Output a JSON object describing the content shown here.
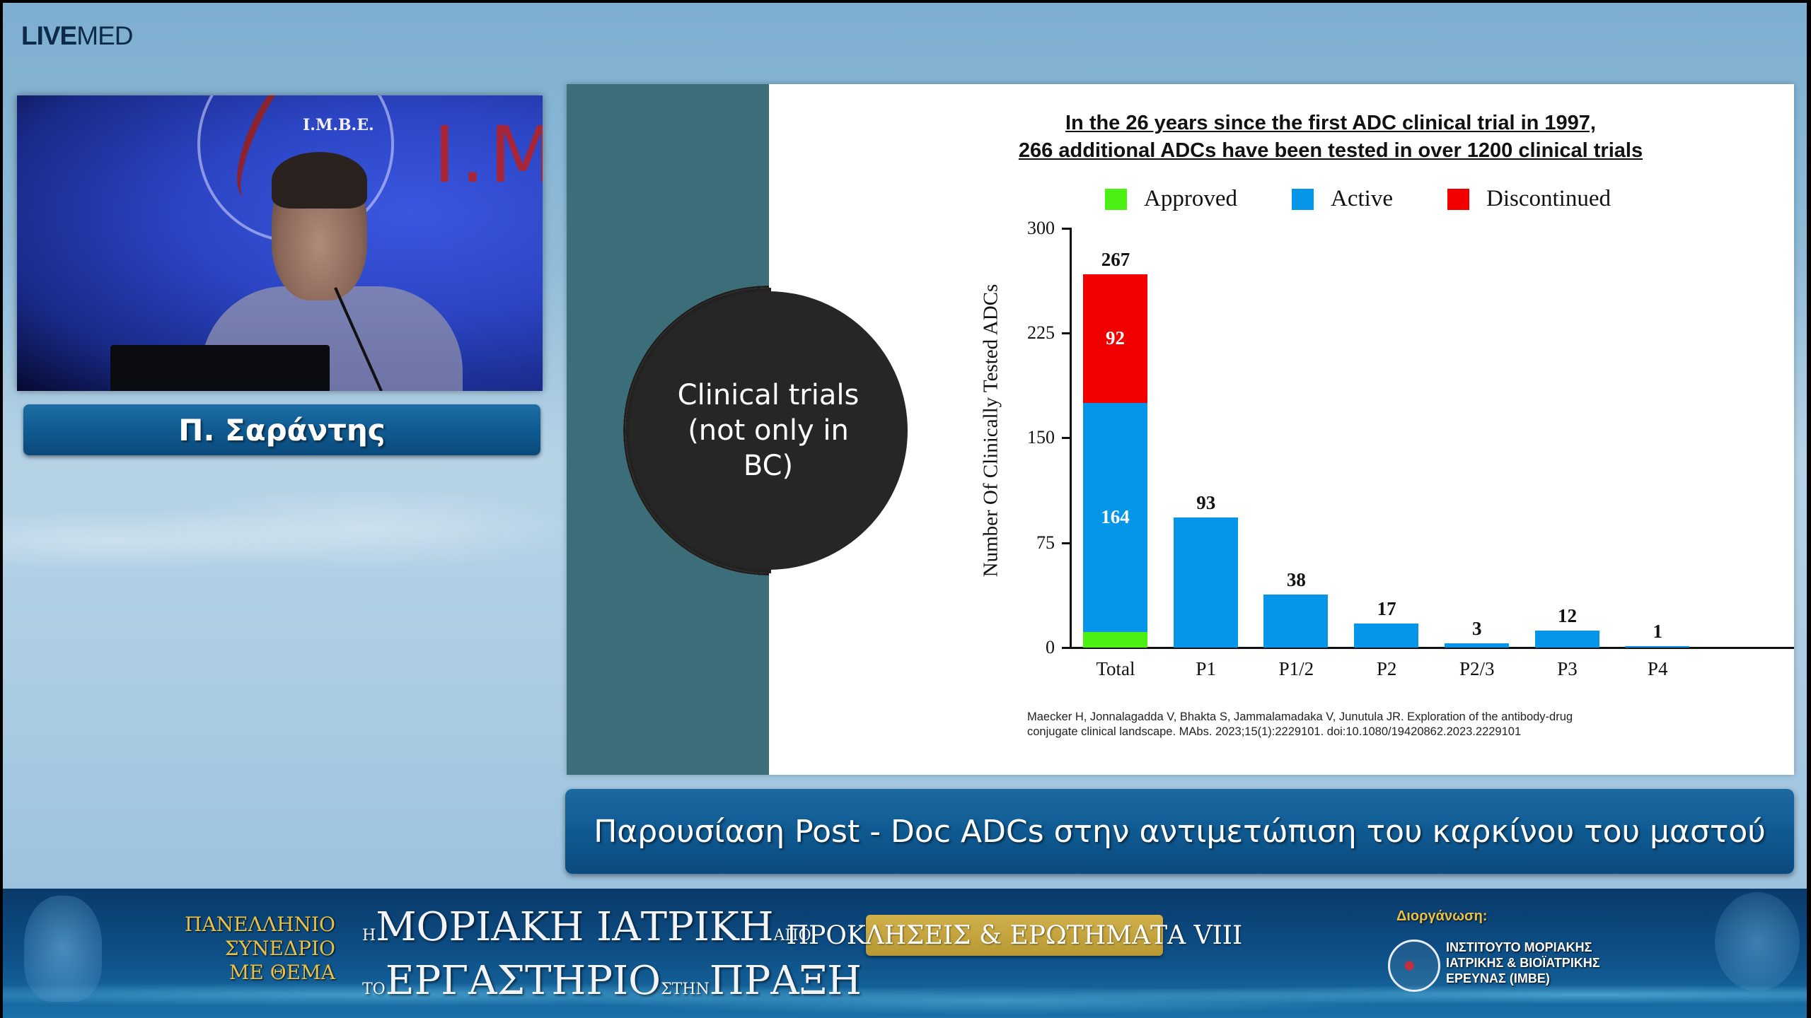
{
  "broadcast": {
    "logo_bold": "LIVE",
    "logo_light": "MED"
  },
  "speaker": {
    "name": "Π. Σαράντης",
    "backdrop_emblem_text": "I.M.B.E.",
    "backdrop_letters": "I.M"
  },
  "slide": {
    "side_circle_text": "Clinical trials (not only in BC)",
    "title_line1": "In the 26 years since the first ADC clinical trial in 1997,",
    "title_line2": "266 additional ADCs have been tested in over 1200 clinical trials",
    "citation_line1": "Maecker H, Jonnalagadda V, Bhakta S, Jammalamadaka V, Junutula JR. Exploration of the antibody-drug",
    "citation_line2": "conjugate clinical landscape. MAbs. 2023;15(1):2229101. doi:10.1080/19420862.2023.2229101"
  },
  "colors": {
    "approved": "#4cf014",
    "active": "#0596ea",
    "discontinued": "#f20000",
    "teal_panel": "#3b6e79",
    "title_bar": "#0f5a92",
    "gold": "#d0b04a"
  },
  "chart_data": {
    "type": "bar",
    "stacked": true,
    "title": "In the 26 years since the first ADC clinical trial in 1997, 266 additional ADCs have been tested in over 1200 clinical trials",
    "xlabel": "",
    "ylabel": "Number Of Clinically Tested ADCs",
    "ylim": [
      0,
      300
    ],
    "yticks": [
      0,
      75,
      150,
      225,
      300
    ],
    "categories": [
      "Total",
      "P1",
      "P1/2",
      "P2",
      "P2/3",
      "P3",
      "P4"
    ],
    "series": [
      {
        "name": "Approved",
        "color": "#4cf014",
        "values": [
          11,
          0,
          0,
          0,
          0,
          0,
          0
        ]
      },
      {
        "name": "Active",
        "color": "#0596ea",
        "values": [
          164,
          93,
          38,
          17,
          3,
          12,
          1
        ]
      },
      {
        "name": "Discontinued",
        "color": "#f20000",
        "values": [
          92,
          0,
          0,
          0,
          0,
          0,
          0
        ]
      }
    ],
    "totals": [
      267,
      93,
      38,
      17,
      3,
      12,
      1
    ],
    "legend": [
      "Approved",
      "Active",
      "Discontinued"
    ],
    "legend_position": "top",
    "grid": false,
    "segment_labels": {
      "Total": {
        "Approved": "11",
        "Active": "164",
        "Discontinued": "92"
      }
    }
  },
  "presentation_title": "Παρουσίαση Post - Doc ADCs στην αντιμετώπιση του καρκίνου του μαστού",
  "banner": {
    "congress_lines": [
      "ΠΑΝΕΛΛΗΝΙΟ",
      "ΣΥΝΕΔΡΙΟ",
      "ΜΕ ΘΕΜΑ"
    ],
    "main_line1_prefix": "Η",
    "main_line1": "ΜΟΡΙΑΚΗ ΙΑΤΡΙΚΗ",
    "main_line1_suffix": "ΑΠΟ",
    "main_line2_prefix": "ΤΟ",
    "main_line2": "ΕΡΓΑΣΤΗΡΙΟ",
    "main_line2_mid": "ΣΤΗΝ",
    "main_line2_end": "ΠΡΑΞΗ",
    "subtitle": "ΠΡΟΚΛΗΣΕΙΣ & ΕΡΩΤΗΜΑΤΑ VIII",
    "organizer_label": "Διοργάνωση:",
    "organizer_name_lines": [
      "ΙΝΣΤΙΤΟΥΤΟ ΜΟΡΙΑΚΗΣ",
      "ΙΑΤΡΙΚΗΣ & ΒΙΟΪΑΤΡΙΚΗΣ",
      "ΕΡΕΥΝΑΣ (IMBE)"
    ]
  }
}
